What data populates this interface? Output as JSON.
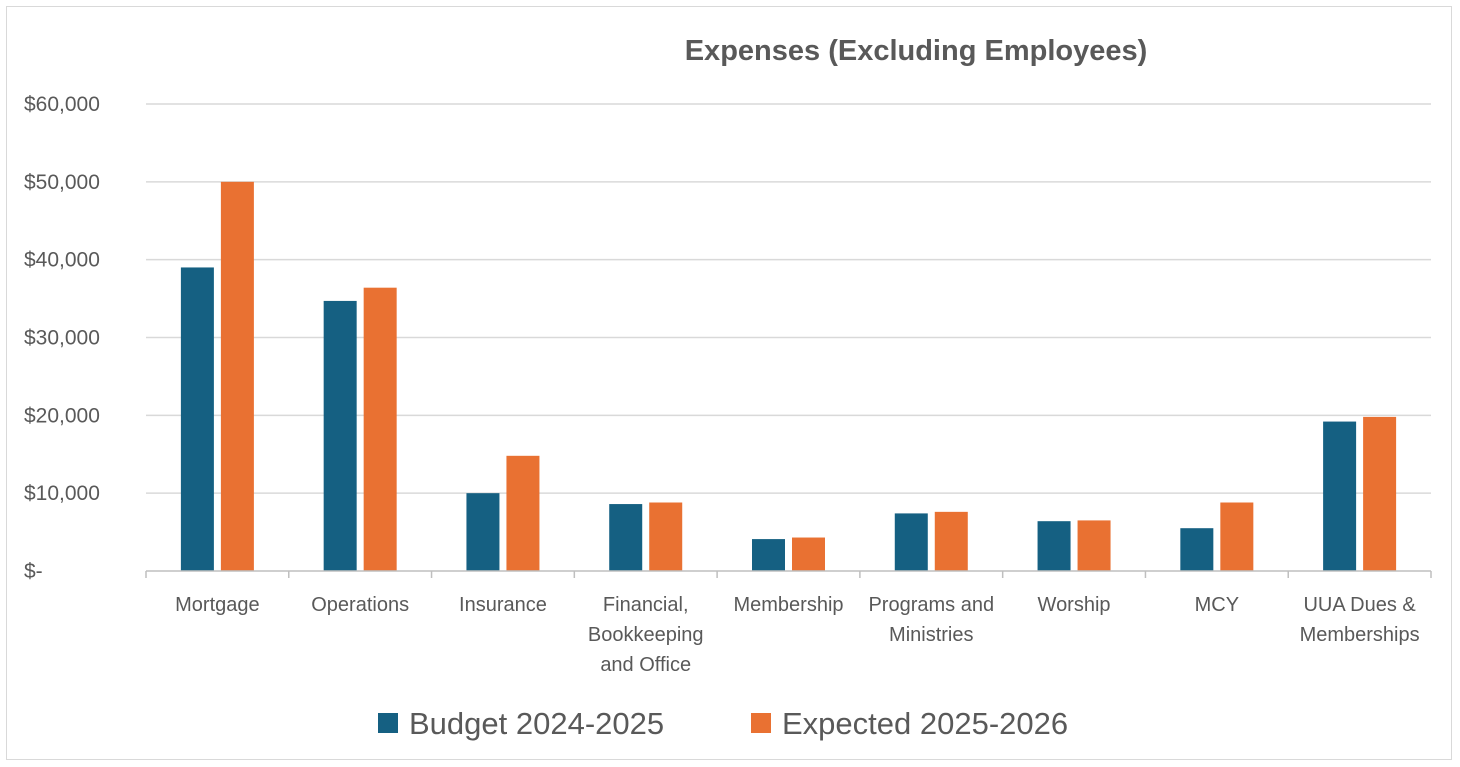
{
  "chart_data": {
    "type": "bar",
    "title": "Expenses (Excluding Employees)",
    "xlabel": "",
    "ylabel": "",
    "ylim": [
      0,
      60000
    ],
    "yticks": [
      {
        "value": 0,
        "label": "$-"
      },
      {
        "value": 10000,
        "label": "$10,000"
      },
      {
        "value": 20000,
        "label": "$20,000"
      },
      {
        "value": 30000,
        "label": "$30,000"
      },
      {
        "value": 40000,
        "label": "$40,000"
      },
      {
        "value": 50000,
        "label": "$50,000"
      },
      {
        "value": 60000,
        "label": "$60,000"
      }
    ],
    "categories": [
      "Mortgage",
      "Operations",
      "Insurance",
      "Financial, Bookkeeping and Office",
      "Membership",
      "Programs and Ministries",
      "Worship",
      "MCY",
      "UUA Dues & Memberships"
    ],
    "category_label_lines": [
      [
        "Mortgage"
      ],
      [
        "Operations"
      ],
      [
        "Insurance"
      ],
      [
        "Financial,",
        "Bookkeeping",
        "and Office"
      ],
      [
        "Membership"
      ],
      [
        "Programs and",
        "Ministries"
      ],
      [
        "Worship"
      ],
      [
        "MCY"
      ],
      [
        "UUA Dues &",
        "Memberships"
      ]
    ],
    "series": [
      {
        "name": "Budget 2024-2025",
        "color": "#156082",
        "values": [
          39000,
          34700,
          10000,
          8600,
          4100,
          7400,
          6400,
          5500,
          19200
        ]
      },
      {
        "name": "Expected 2025-2026",
        "color": "#E97132",
        "values": [
          50000,
          36400,
          14800,
          8800,
          4300,
          7600,
          6500,
          8800,
          19800
        ]
      }
    ],
    "grid": true,
    "legend_position": "bottom"
  }
}
